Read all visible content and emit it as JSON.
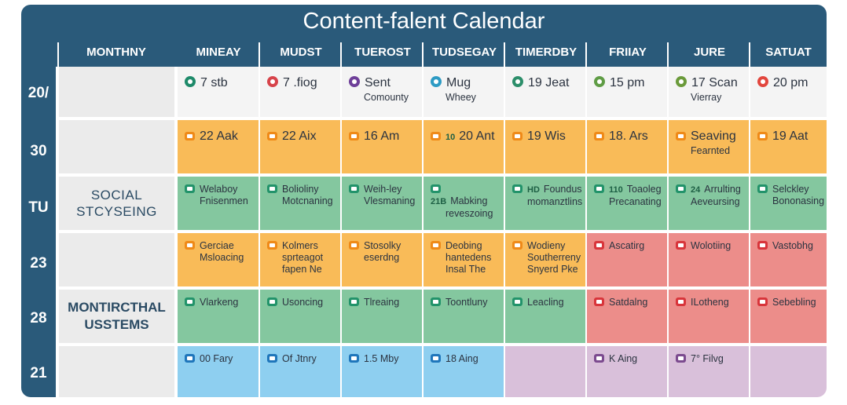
{
  "title": "Content-falent Calendar",
  "headers": [
    "MONTHNY",
    "MINEAY",
    "MUDST",
    "TUEROST",
    "TUDSEGAY",
    "TIMERDBY",
    "FRIIAY",
    "JURE",
    "SATUAT"
  ],
  "row_labels": [
    "20/",
    "30",
    "TU",
    "23",
    "28",
    "21"
  ],
  "categories": {
    "social": "SOCIAL STCYSEING",
    "monthly": "MONTIRCTHAL USSTEMS"
  },
  "colors": {
    "navy": "#2a5a7a",
    "grey": "#ebebeb",
    "white": "#f4f4f4",
    "orange": "#f9bb58",
    "green": "#84c79f",
    "red": "#ec8d8a",
    "blue": "#8ecff0",
    "purple": "#d9c0da",
    "icon_orange": "#ef8a18",
    "icon_green": "#22936a",
    "icon_red": "#d8353b",
    "icon_blue": "#1f76bb",
    "icon_purple": "#7c4b8f"
  },
  "rows": [
    [
      {
        "text": "7 stb",
        "icon": "share-icon",
        "color": "#1e8a6a"
      },
      {
        "text": "7 .fiog",
        "icon": "heart-icon",
        "color": "#d7434a"
      },
      {
        "text": "Sent",
        "text2": "Comounty",
        "icon": "chat-icon",
        "color": "#6e3f99"
      },
      {
        "text": "Mug",
        "text2": "Wheey",
        "icon": "camera-icon",
        "color": "#2d9bc4"
      },
      {
        "text": "19 Jeat",
        "icon": "video-icon",
        "color": "#2c8e6a"
      },
      {
        "text": "15 pm",
        "icon": "photo-icon",
        "color": "#5f9c45"
      },
      {
        "text": "17 Scan",
        "text2": "Vierray",
        "icon": "image-icon",
        "color": "#6a9a3a"
      },
      {
        "text": "20 pm",
        "icon": "link-icon",
        "color": "#e2463d"
      }
    ],
    [
      {
        "text": "22 Aak",
        "icon": "doc-icon"
      },
      {
        "text": "22 Aix",
        "icon": "doc-icon"
      },
      {
        "text": "16 Am",
        "icon": "doc-icon"
      },
      {
        "text": "20 Ant",
        "icon": "calendar-icon",
        "badge": "10"
      },
      {
        "text": "19 Wis",
        "icon": "doc-icon"
      },
      {
        "text": "18. Ars",
        "icon": "home-icon"
      },
      {
        "text": "Seaving",
        "text2": "Fearnted",
        "icon": "doc-icon"
      },
      {
        "text": "19 Aat",
        "icon": "clock-icon"
      }
    ],
    [
      {
        "text": "Welaboy",
        "text2": "Fnisenmen",
        "icon": "doc-icon"
      },
      {
        "text": "Bolioliny",
        "text2": "Motcnaning",
        "icon": "doc-icon"
      },
      {
        "text": "Weih-ley",
        "text2": "Vlesmaning",
        "icon": "doc-icon"
      },
      {
        "text": "Mabking",
        "text2": "reveszoing",
        "badge": "21B",
        "icon": "calendar-icon"
      },
      {
        "text": "Foundus",
        "text2": "momanztlins",
        "badge": "HD",
        "icon": "calendar-icon"
      },
      {
        "text": "Toaoleg",
        "text2": "Precanating",
        "badge": "110",
        "icon": "calendar-icon"
      },
      {
        "text": "Arrulting",
        "text2": "Aeveursing",
        "badge": "24",
        "icon": "calendar-icon"
      },
      {
        "text": "Selckley",
        "text2": "Bononasing",
        "icon": "doc-icon"
      }
    ],
    [
      {
        "text": "Gerciae",
        "text2": "Msloacing",
        "icon": "doc-icon"
      },
      {
        "text": "Kolmers",
        "text2": "sprteagot",
        "text3": "fapen Ne",
        "icon": "doc-icon"
      },
      {
        "text": "Stosolky",
        "text2": "eserdng",
        "icon": "doc-icon"
      },
      {
        "text": "Deobing",
        "text2": "hantedens",
        "text3": "Insal The",
        "icon": "doc-icon"
      },
      {
        "text": "Wodieny",
        "text2": "Southerreny",
        "text3": "Snyerd Pke",
        "icon": "doc-icon"
      },
      {
        "text": "Ascatirg",
        "icon": "doc-icon"
      },
      {
        "text": "Wolotiing",
        "icon": "doc-icon"
      },
      {
        "text": "Vastobhg",
        "icon": "doc-icon"
      }
    ],
    [
      {
        "text": "Vlarkeng",
        "icon": "doc-icon"
      },
      {
        "text": "Usoncing",
        "icon": "doc-icon"
      },
      {
        "text": "Tlreaing",
        "icon": "doc-icon"
      },
      {
        "text": "Toontluny",
        "icon": "doc-icon"
      },
      {
        "text": "Leacling",
        "icon": "doc-icon"
      },
      {
        "text": "Satdalng",
        "icon": "doc-icon"
      },
      {
        "text": "ILotheng",
        "icon": "doc-icon"
      },
      {
        "text": "Sebebling",
        "icon": "clock-icon"
      }
    ],
    [
      {
        "text": "00 Fary",
        "icon": "doc-icon"
      },
      {
        "text": "Of Jtnry",
        "icon": "doc-icon"
      },
      {
        "text": "1.5 Mby",
        "icon": "doc-icon"
      },
      {
        "text": "18 Aing",
        "icon": "doc-icon"
      },
      {
        "text": "",
        "icon": ""
      },
      {
        "text": "K Aing",
        "icon": "doc-icon"
      },
      {
        "text": "7° Filvg",
        "icon": "doc-icon"
      },
      {
        "text": "",
        "icon": ""
      }
    ]
  ]
}
